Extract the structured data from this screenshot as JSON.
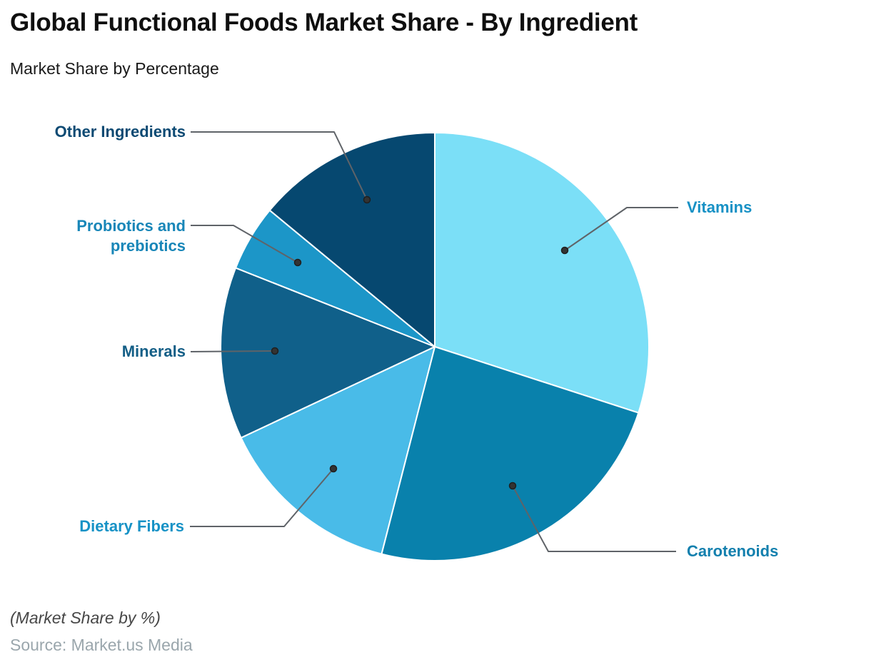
{
  "header": {
    "title": "Global Functional Foods Market Share - By Ingredient",
    "subtitle": "Market Share by Percentage"
  },
  "footer": {
    "note": "(Market Share by %)",
    "source": "Source: Market.us Media"
  },
  "chart_data": {
    "type": "pie",
    "title": "Global Functional Foods Market Share - By Ingredient",
    "subtitle": "Market Share by Percentage",
    "unit": "%",
    "total": 100,
    "start_angle_deg": 0,
    "direction": "clockwise",
    "legend_position": "callout-labels",
    "categories": [
      "Vitamins",
      "Carotenoids",
      "Dietary Fibers",
      "Minerals",
      "Probiotics and prebiotics",
      "Other Ingredients"
    ],
    "values": [
      30,
      24,
      14,
      13,
      5,
      14
    ],
    "segments": [
      {
        "label": "Vitamins",
        "value": 30,
        "color": "#7bdff7",
        "label_color": "#1791c5"
      },
      {
        "label": "Carotenoids",
        "value": 24,
        "color": "#0981ac",
        "label_color": "#1380ae"
      },
      {
        "label": "Dietary Fibers",
        "value": 14,
        "color": "#49bbe8",
        "label_color": "#1792c6"
      },
      {
        "label": "Minerals",
        "value": 13,
        "color": "#10608a",
        "label_color": "#135e86"
      },
      {
        "label": "Probiotics and prebiotics",
        "value": 5,
        "color": "#1c96c8",
        "label_color": "#1886b8"
      },
      {
        "label": "Other Ingredients",
        "value": 14,
        "color": "#064870",
        "label_color": "#0d4a73"
      }
    ],
    "slice_border_color": "#ffffff",
    "connector_color": "#5f6368",
    "connector_dot_color": "#333333"
  }
}
